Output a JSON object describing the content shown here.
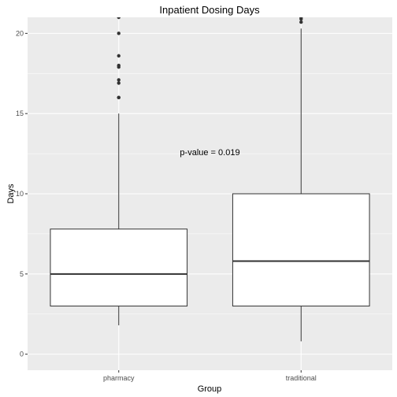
{
  "chart_data": {
    "type": "boxplot",
    "title": "Inpatient Dosing Days",
    "xlabel": "Group",
    "ylabel": "Days",
    "categories": [
      "pharmacy",
      "traditional"
    ],
    "ylim": [
      -1,
      21
    ],
    "yticks": [
      0,
      5,
      10,
      15,
      20
    ],
    "grid": true,
    "legend": "none",
    "boxes": [
      {
        "category": "pharmacy",
        "whisker_low": 1.8,
        "q1": 3,
        "median": 5,
        "q3": 7.8,
        "whisker_high": 15,
        "outliers": [
          16,
          16,
          16.9,
          17.1,
          17.9,
          18,
          18.6,
          20,
          21
        ]
      },
      {
        "category": "traditional",
        "whisker_low": 0.8,
        "q1": 3,
        "median": 5.8,
        "q3": 10,
        "whisker_high": 20.3,
        "outliers": [
          20.7,
          20.9,
          21
        ]
      }
    ],
    "annotations": [
      {
        "text": "p-value = 0.019",
        "x": 1.5,
        "y": 12.4
      }
    ],
    "colors": {
      "panel_background": "#ebebeb",
      "grid_line": "#ffffff",
      "box_fill": "#ffffff",
      "box_stroke": "#333333",
      "outlier": "#333333"
    }
  }
}
